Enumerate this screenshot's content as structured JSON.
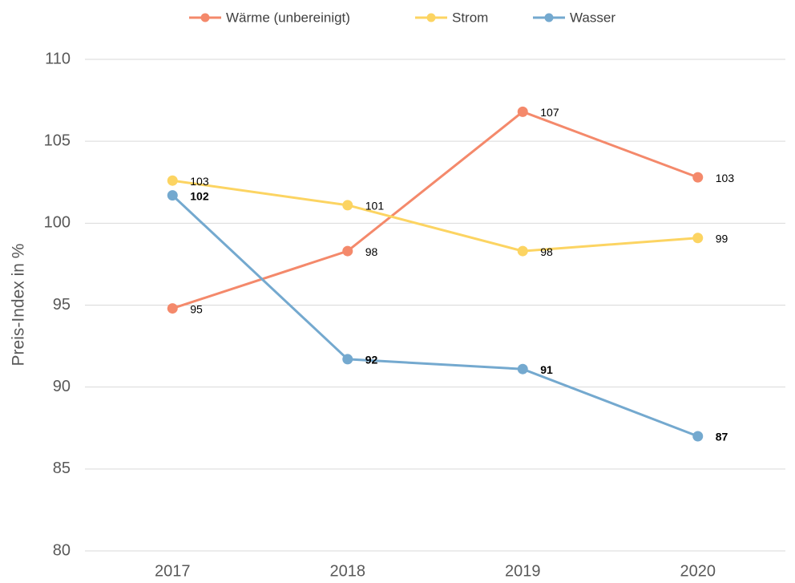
{
  "chart_data": {
    "type": "line",
    "y_label": "Preis-Index in %",
    "categories": [
      "2017",
      "2018",
      "2019",
      "2020"
    ],
    "series": [
      {
        "name": "Wärme (unbereinigt)",
        "color": "#f4896b",
        "values": [
          94.8,
          98.3,
          106.8,
          102.8
        ],
        "value_labels": [
          "95",
          "98",
          "107",
          "103"
        ]
      },
      {
        "name": "Strom",
        "color": "#fcd462",
        "values": [
          102.6,
          101.1,
          98.3,
          99.1
        ],
        "value_labels": [
          "103",
          "101",
          "98",
          "99"
        ]
      },
      {
        "name": "Wasser",
        "color": "#74a9cf",
        "values": [
          101.7,
          91.7,
          91.1,
          87.0
        ],
        "value_labels": [
          "102",
          "92",
          "91",
          "87"
        ]
      }
    ],
    "ylim": [
      80,
      110
    ],
    "yticks": [
      80,
      85,
      90,
      95,
      100,
      105,
      110
    ],
    "grid": true,
    "legend": "top"
  }
}
